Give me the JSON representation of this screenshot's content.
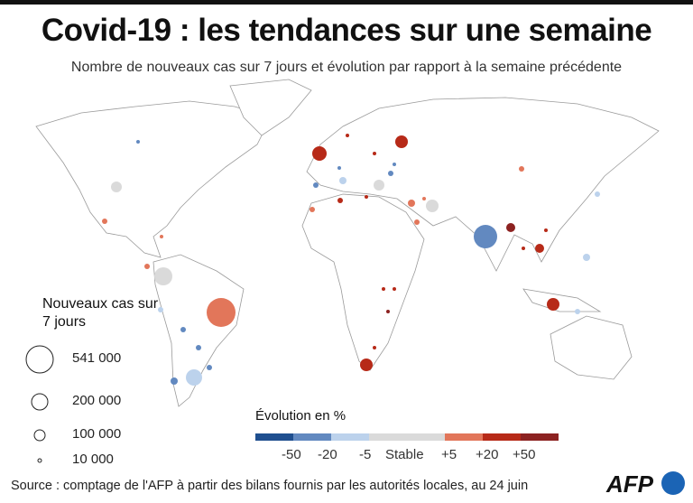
{
  "title": "Covid-19 : les tendances sur une semaine",
  "subtitle": "Nombre de nouveaux cas sur 7 jours et évolution par rapport à la semaine précédente",
  "size_legend": {
    "title": "Nouveaux cas sur 7 jours",
    "items": [
      "541 000",
      "200 000",
      "100 000",
      "10 000"
    ]
  },
  "evolution_legend": {
    "title": "Évolution en %",
    "labels": [
      "-50",
      "-20",
      "-5",
      "Stable",
      "+5",
      "+20",
      "+50"
    ],
    "colors": [
      "#1f4f8f",
      "#6289c0",
      "#bcd2ec",
      "#dadada",
      "#dadada",
      "#e2765a",
      "#b72a18",
      "#8c2221"
    ]
  },
  "source": "Source : comptage de l'AFP à partir des bilans fournis par les autorités locales, au 24 juin",
  "logo": "AFP"
}
